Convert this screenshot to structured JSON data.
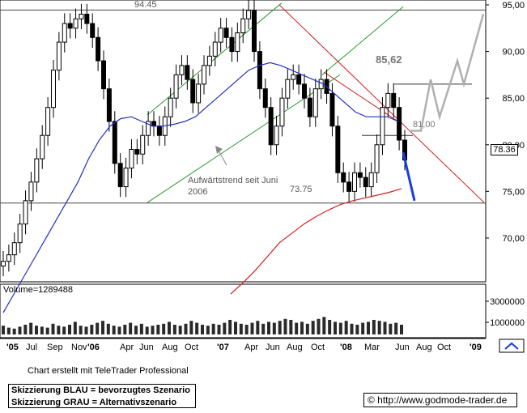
{
  "chart_data": [
    {
      "type": "candlestick",
      "ylim": [
        65,
        95
      ],
      "y_ticks": [
        "95,00",
        "90,00",
        "85,00",
        "80,00",
        "75,00",
        "70,00"
      ],
      "x_tick_labels": [
        "'05",
        "Jul",
        "Sep",
        "Nov",
        "'06",
        "Apr",
        "Jun",
        "Aug",
        "Oct",
        "'07",
        "Apr",
        "Jun",
        "Aug",
        "Oct",
        "'08",
        "Mar",
        "Jun",
        "Aug",
        "Oct",
        "'09"
      ],
      "last_price_label": "78.36",
      "annotations": {
        "high": "94.45",
        "low": "73.75",
        "target_high": "85,62",
        "support": "81,00",
        "trend_note_line1": "Aufwärtstrend seit Juni",
        "trend_note_line2": "2006"
      },
      "price_series": [
        67.5,
        68.2,
        69.5,
        71.5,
        74.0,
        76.0,
        78.5,
        81.0,
        84.0,
        88.0,
        91.0,
        93.0,
        92.5,
        93.5,
        94.0,
        93.0,
        91.5,
        89.0,
        86.0,
        82.5,
        78.0,
        75.5,
        77.5,
        79.5,
        79.0,
        81.0,
        82.5,
        82.0,
        81.0,
        83.0,
        85.0,
        87.5,
        88.5,
        87.0,
        84.5,
        86.5,
        88.5,
        89.5,
        91.0,
        92.5,
        91.5,
        90.0,
        92.0,
        93.5,
        94.4,
        90.0,
        86.0,
        84.0,
        80.0,
        82.0,
        85.0,
        87.0,
        87.5,
        86.5,
        85.0,
        83.0,
        86.0,
        87.0,
        85.5,
        82.0,
        77.0,
        76.0,
        75.0,
        77.0,
        76.5,
        75.5,
        77.0,
        80.0,
        84.0,
        85.5,
        84.0,
        80.5,
        78.36
      ],
      "sma_blue": [
        62,
        64,
        66,
        68,
        70,
        72,
        74,
        76,
        78.5,
        80.5,
        82,
        82.8,
        83,
        82.5,
        82,
        82,
        82.2,
        82.5,
        83,
        84,
        85,
        86,
        87,
        88,
        88.5,
        88.8,
        88.5,
        88,
        87.5,
        87,
        86.5,
        85.5,
        84.5,
        83.5,
        83,
        83,
        83,
        82.5
      ],
      "sma_red": [
        64,
        65.2,
        66.5,
        68,
        69.5,
        70.5,
        71.5,
        72.3,
        73,
        73.6,
        74,
        74.3,
        74.6,
        74.9,
        75.3
      ],
      "scenario_blue_note": "Skizzierung BLAU = bevorzugtes Szenario",
      "scenario_grey_note": "Skizzierung GRAU = Alternativszenario"
    },
    {
      "type": "bar",
      "title": "Volume=1289488",
      "y_ticks": [
        "3000000",
        "1000000"
      ],
      "values": [
        0.9,
        0.7,
        0.6,
        0.8,
        1.0,
        1.2,
        0.9,
        0.8,
        0.7,
        1.1,
        0.9,
        0.8,
        1.0,
        1.3,
        0.9,
        0.8,
        1.0,
        1.2,
        1.4,
        1.1,
        0.9,
        0.8,
        1.0,
        1.2,
        0.9,
        1.1,
        0.8,
        0.9,
        1.0,
        1.1,
        1.3,
        1.0,
        0.9,
        1.1,
        1.4,
        1.2,
        1.0,
        0.9,
        1.1,
        1.0,
        1.2,
        1.5,
        1.3,
        1.1,
        1.0,
        1.2,
        1.4,
        1.1,
        1.3,
        1.2,
        1.4,
        1.6,
        1.5,
        1.2,
        1.3,
        1.1,
        1.4,
        1.6,
        1.8,
        1.5,
        1.3,
        1.2,
        1.4,
        1.1,
        1.0,
        1.2,
        1.3,
        1.5,
        1.4,
        1.3,
        1.1,
        1.2,
        1.0
      ]
    }
  ],
  "footer": {
    "created_with": "Chart erstellt mit TeleTrader Professional",
    "url": "© http://www.godmode-trader.de"
  }
}
